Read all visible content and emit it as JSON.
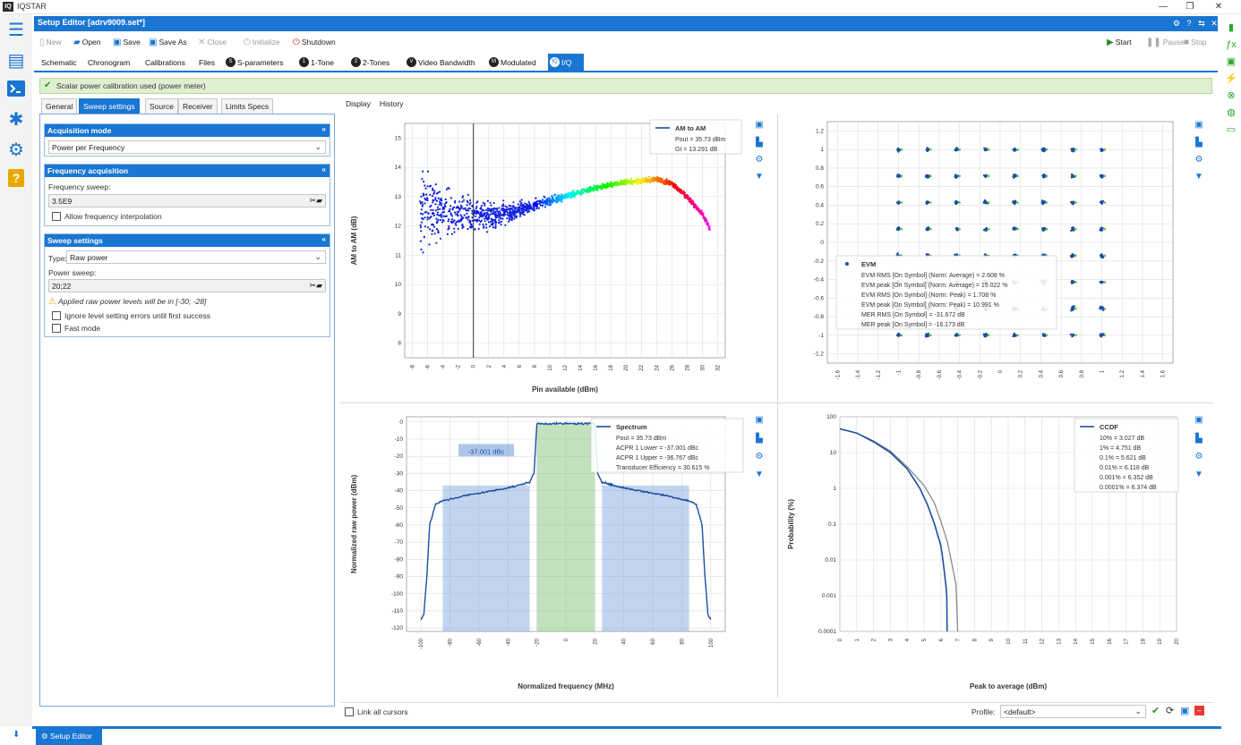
{
  "app": {
    "name": "IQSTAR",
    "logo": "IQ"
  },
  "window": {
    "minimize": "—",
    "restore": "❐",
    "close": "✕"
  },
  "editor": {
    "title": "Setup Editor [adrv9009.set*]"
  },
  "toolbar": {
    "new": "New",
    "open": "Open",
    "save": "Save",
    "save_as": "Save As",
    "close": "Close",
    "initialize": "Initialize",
    "shutdown": "Shutdown",
    "start": "Start",
    "pause": "Pause",
    "stop": "Stop"
  },
  "tabs": [
    "Schematic",
    "Chronogram",
    "Calibrations",
    "Files",
    "S-parameters",
    "1-Tone",
    "2-Tones",
    "Video Bandwidth",
    "Modulated",
    "I/Q"
  ],
  "active_tab": "I/Q",
  "notice": "Scalar power calibration used (power meter)",
  "left_tabs": [
    "General",
    "Sweep settings",
    "Source",
    "Receiver",
    "Limits Specs"
  ],
  "acq_mode": {
    "title": "Acquisition mode",
    "value": "Power per Frequency"
  },
  "freq_acq": {
    "title": "Frequency acquisition",
    "sweep_label": "Frequency sweep:",
    "sweep_value": "3.5E9",
    "interp_label": "Allow frequency interpolation"
  },
  "sweep_settings": {
    "title": "Sweep settings",
    "type_label": "Type:",
    "type_value": "Raw power",
    "power_label": "Power sweep:",
    "power_value": "20;22",
    "warning": "Applied raw power levels will be in [-30; -28]",
    "ignore_label": "Ignore level setting errors until first success",
    "fast_label": "Fast mode"
  },
  "subtabs": [
    "Display",
    "History"
  ],
  "bottom": {
    "link_label": "Link all cursors",
    "profile_label": "Profile:",
    "profile_value": "<default>"
  },
  "status_tab": "Setup Editor",
  "colors": {
    "accent": "#1976d2",
    "series": "#1a4fa0",
    "ok": "#2e8b2e"
  },
  "chart_data": [
    {
      "type": "scatter",
      "xlabel": "Pin available (dBm)",
      "ylabel": "AM to AM (dB)",
      "x_ticks": [
        -8,
        -6,
        -4,
        -2,
        0,
        2,
        4,
        6,
        8,
        10,
        12,
        14,
        16,
        18,
        20,
        22,
        24,
        26,
        28,
        30,
        32
      ],
      "y_ticks": [
        8,
        9,
        10,
        11,
        12,
        13,
        14,
        15
      ],
      "xlim": [
        -9,
        33
      ],
      "ylim": [
        7.5,
        15.5
      ],
      "cursor_x": 0,
      "legend": {
        "name": "AM to AM",
        "lines": [
          "Pout = 35.73 dBm",
          "Gt = 13.291 dB"
        ]
      },
      "series_curve": [
        [
          -7,
          12.5
        ],
        [
          -4,
          12.5
        ],
        [
          0,
          12.3
        ],
        [
          4,
          12.4
        ],
        [
          8,
          12.7
        ],
        [
          12,
          13.0
        ],
        [
          16,
          13.3
        ],
        [
          20,
          13.5
        ],
        [
          24,
          13.6
        ],
        [
          26,
          13.45
        ],
        [
          28,
          13.0
        ],
        [
          30,
          12.4
        ],
        [
          31,
          11.9
        ]
      ]
    },
    {
      "type": "scatter",
      "xlabel": "",
      "ylabel": "",
      "x_ticks": [
        -1.6,
        -1.4,
        -1.2,
        -1,
        -0.8,
        -0.6,
        -0.4,
        -0.2,
        0,
        0.2,
        0.4,
        0.6,
        0.8,
        1,
        1.2,
        1.4,
        1.6
      ],
      "y_ticks": [
        -1.2,
        -1,
        -0.8,
        -0.6,
        -0.4,
        -0.2,
        0,
        0.2,
        0.4,
        0.6,
        0.8,
        1,
        1.2
      ],
      "xlim": [
        -1.7,
        1.7
      ],
      "ylim": [
        -1.3,
        1.3
      ],
      "constellation_levels": [
        -1.0,
        -0.7143,
        -0.4286,
        -0.1429,
        0.1429,
        0.4286,
        0.7143,
        1.0
      ],
      "legend": {
        "name": "EVM",
        "lines": [
          "EVM RMS [On Symbol] (Norm: Average) = 2.608 %",
          "EVM peak [On Symbol] (Norm: Average) = 15.022 %",
          "EVM RMS [On Symbol] (Norm: Peak) = 1.708 %",
          "EVM peak [On Symbol] (Norm: Peak) = 10.991 %",
          "MER RMS [On Symbol] = -31.672 dB",
          "MER peak [On Symbol] = -16.173 dB"
        ]
      }
    },
    {
      "type": "line",
      "xlabel": "Normalized frequency (MHz)",
      "ylabel": "Normalized raw power (dBm)",
      "x_ticks": [
        -100,
        -80,
        -60,
        -40,
        -20,
        0,
        20,
        40,
        60,
        80,
        100
      ],
      "y_ticks": [
        0,
        -10,
        -20,
        -30,
        -40,
        -50,
        -60,
        -70,
        -80,
        -90,
        -100,
        -110,
        -120
      ],
      "xlim": [
        -110,
        110
      ],
      "ylim": [
        -122,
        3
      ],
      "bands": [
        {
          "from": -85,
          "to": -25,
          "kind": "adjacent"
        },
        {
          "from": -20,
          "to": 20,
          "kind": "main"
        },
        {
          "from": 25,
          "to": 85,
          "kind": "adjacent"
        }
      ],
      "band_label": "-37.001 dBc",
      "legend": {
        "name": "Spectrum",
        "lines": [
          "Pout = 35.73 dBm",
          "ACPR 1 Lower = -37.001 dBc",
          "ACPR 1 Upper = -36.767 dBc",
          "Transducer Efficiency = 30.615 %"
        ]
      },
      "series": [
        [
          -100,
          -115
        ],
        [
          -98,
          -112
        ],
        [
          -96,
          -90
        ],
        [
          -94,
          -60
        ],
        [
          -90,
          -48
        ],
        [
          -85,
          -46
        ],
        [
          -70,
          -43
        ],
        [
          -50,
          -40
        ],
        [
          -35,
          -37.5
        ],
        [
          -25,
          -35
        ],
        [
          -22,
          -30
        ],
        [
          -20,
          -1
        ],
        [
          0,
          -1
        ],
        [
          20,
          -1
        ],
        [
          22,
          -30
        ],
        [
          25,
          -35
        ],
        [
          35,
          -37.5
        ],
        [
          50,
          -40
        ],
        [
          70,
          -43
        ],
        [
          85,
          -46
        ],
        [
          90,
          -48
        ],
        [
          94,
          -60
        ],
        [
          96,
          -90
        ],
        [
          98,
          -112
        ],
        [
          100,
          -115
        ]
      ]
    },
    {
      "type": "line",
      "xlabel": "Peak to average (dBm)",
      "ylabel": "Probability (%)",
      "x_ticks": [
        0,
        1,
        2,
        3,
        4,
        5,
        6,
        7,
        8,
        9,
        10,
        11,
        12,
        13,
        14,
        15,
        16,
        17,
        18,
        19,
        20
      ],
      "y_ticks": [
        "100",
        "10",
        "1",
        "0.1",
        "0.01",
        "0.001",
        "0.0001"
      ],
      "y_scale": "log",
      "xlim": [
        0,
        20
      ],
      "ylim": [
        0.0001,
        100
      ],
      "legend": {
        "name": "CCDF",
        "lines": [
          "10% = 3.027 dB",
          "1% = 4.751 dB",
          "0.1% = 5.621 dB",
          "0.01% = 6.118 dB",
          "0.001% = 6.352 dB",
          "0.0001% = 6.374 dB"
        ]
      },
      "series": [
        {
          "name": "CCDF",
          "points": [
            [
              0,
              46
            ],
            [
              1,
              35
            ],
            [
              2,
              20
            ],
            [
              3,
              10
            ],
            [
              4,
              3.5
            ],
            [
              4.75,
              1
            ],
            [
              5.2,
              0.35
            ],
            [
              5.62,
              0.1
            ],
            [
              6,
              0.025
            ],
            [
              6.12,
              0.01
            ],
            [
              6.3,
              0.002
            ],
            [
              6.35,
              0.001
            ],
            [
              6.37,
              0.0001
            ]
          ]
        },
        {
          "points": [
            [
              0,
              46
            ],
            [
              1,
              35
            ],
            [
              2,
              21
            ],
            [
              3,
              11
            ],
            [
              4,
              4
            ],
            [
              5,
              1.2
            ],
            [
              5.6,
              0.4
            ],
            [
              6,
              0.12
            ],
            [
              6.4,
              0.03
            ],
            [
              6.7,
              0.006
            ],
            [
              6.9,
              0.002
            ],
            [
              7.0,
              0.0001
            ]
          ]
        }
      ]
    }
  ]
}
